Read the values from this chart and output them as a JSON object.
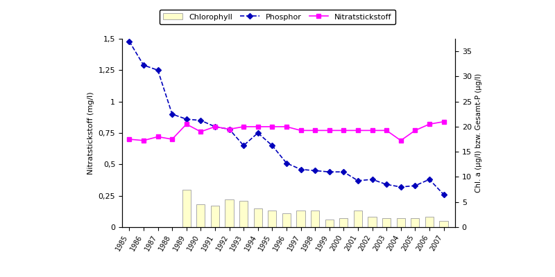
{
  "years": [
    1985,
    1986,
    1987,
    1988,
    1989,
    1990,
    1991,
    1992,
    1993,
    1994,
    1995,
    1996,
    1997,
    1998,
    1999,
    2000,
    2001,
    2002,
    2003,
    2004,
    2005,
    2006,
    2007
  ],
  "phosphor": [
    1.48,
    1.29,
    1.25,
    0.9,
    0.86,
    0.85,
    0.8,
    0.78,
    0.65,
    0.75,
    0.65,
    0.51,
    0.46,
    0.45,
    0.44,
    0.44,
    0.37,
    0.38,
    0.34,
    0.32,
    0.33,
    0.38,
    0.26
  ],
  "nitratstickstoff": [
    0.7,
    0.69,
    0.72,
    0.7,
    0.82,
    0.76,
    0.8,
    0.78,
    0.8,
    0.8,
    0.8,
    0.8,
    0.77,
    0.77,
    0.77,
    0.77,
    0.77,
    0.77,
    0.77,
    0.69,
    0.77,
    0.82,
    0.84
  ],
  "chlorophyll": [
    0,
    0,
    0,
    0,
    0.3,
    0.18,
    0.17,
    0.22,
    0.21,
    0.15,
    0.13,
    0.11,
    0.13,
    0.13,
    0.06,
    0.07,
    0.13,
    0.08,
    0.07,
    0.07,
    0.07,
    0.08,
    0.05
  ],
  "phosphor_color": "#0000BB",
  "nitratstickstoff_color": "#FF00FF",
  "chlorophyll_color": "#FFFFCC",
  "chlorophyll_edgecolor": "#AAAAAA",
  "ylabel_left": "Nitratstickstoff (mg/l)",
  "ylabel_right": "Chl. a (μg/l) bzw. Gesamt-P (μg/l)",
  "ylim_left": [
    0,
    1.5
  ],
  "ylim_right": [
    0,
    37.5
  ],
  "yticks_left": [
    0,
    0.25,
    0.5,
    0.75,
    1.0,
    1.25,
    1.5
  ],
  "yticks_left_labels": [
    "0",
    "0,25",
    "0,5",
    "0,75",
    "1",
    "1,25",
    "1,5"
  ],
  "yticks_right": [
    0,
    5,
    10,
    15,
    20,
    25,
    30,
    35
  ],
  "legend_labels": [
    "Chlorophyll",
    "Phosphor",
    "Nitratstickstoff"
  ],
  "background_color": "#FFFFFF",
  "figure_background": "#FFFFFF"
}
